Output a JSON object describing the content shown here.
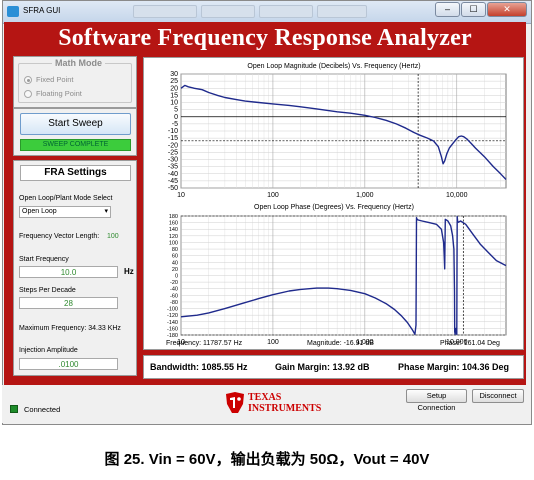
{
  "window": {
    "title": "SFRA GUI",
    "minimize": "–",
    "maximize": "☐",
    "close": "✕"
  },
  "banner": "Software Frequency Response Analyzer",
  "math_mode": {
    "title": "Math Mode",
    "options": [
      {
        "label": "Fixed Point",
        "selected": true
      },
      {
        "label": "Floating Point",
        "selected": false
      }
    ]
  },
  "start_sweep": "Start Sweep",
  "sweep_status": "SWEEP COMPLETE",
  "fra_settings": {
    "title": "FRA Settings",
    "mode_label": "Open Loop/Plant Mode Select",
    "mode_value": "Open Loop",
    "freq_vector_label": "Frequency Vector Length:",
    "freq_vector_value": "100",
    "start_freq_label": "Start Frequency",
    "start_freq_value": "10.0",
    "start_freq_unit": "Hz",
    "steps_label": "Steps Per Decade",
    "steps_value": "28",
    "max_freq_label": "Maximum Frequency: 34.33 KHz",
    "injection_label": "Injection Amplitude",
    "injection_value": ".0100"
  },
  "chart_data": [
    {
      "type": "line",
      "title": "Open Loop Magnitude (Decibels) Vs. Frequency (Hertz)",
      "xscale": "log",
      "xlim": [
        10,
        34330
      ],
      "ylim": [
        -50,
        30
      ],
      "x_ticks": [
        "10",
        "100",
        "1,000",
        "10,000"
      ],
      "y_ticks": [
        "30",
        "25",
        "20",
        "15",
        "10",
        "5",
        "0",
        "-5",
        "-10",
        "-15",
        "-20",
        "-25",
        "-30",
        "-35",
        "-40",
        "-45",
        "-50"
      ],
      "grid": true,
      "series": [
        {
          "color": "#1f2a8c",
          "x": [
            10,
            11,
            12,
            14,
            17,
            20,
            25,
            30,
            40,
            50,
            70,
            100,
            150,
            200,
            300,
            500,
            700,
            1000,
            1300,
            1700,
            2200,
            2800,
            3400,
            4000,
            4800,
            5600,
            6300,
            6800,
            7100,
            7400,
            7800,
            8300,
            9000,
            9800,
            10500,
            11200,
            11900,
            12800,
            14000,
            16000,
            20000,
            25000,
            30000,
            34330
          ],
          "y": [
            20,
            22,
            21,
            20,
            19,
            17,
            15,
            13.5,
            12,
            11,
            10,
            9,
            8,
            7,
            5.5,
            3.5,
            2.5,
            1,
            -0.5,
            -2.5,
            -5,
            -8,
            -11,
            -13,
            -15,
            -17,
            -21,
            -28,
            -33,
            -31,
            -26,
            -22,
            -19,
            -16,
            -14,
            -13.5,
            -14,
            -15.5,
            -18,
            -22,
            -28,
            -35,
            -40,
            -44
          ]
        }
      ],
      "markers": [
        {
          "x": 3800,
          "label": "dashed cursor"
        }
      ],
      "reference_y": -16.91
    },
    {
      "type": "line",
      "title": "Open Loop Phase (Degrees) Vs. Frequency (Hertz)",
      "xscale": "log",
      "xlim": [
        10,
        34330
      ],
      "ylim": [
        -180,
        180
      ],
      "x_ticks": [
        "10",
        "100",
        "1,000",
        "10,000"
      ],
      "y_ticks": [
        "180",
        "160",
        "140",
        "120",
        "100",
        "80",
        "60",
        "40",
        "20",
        "0",
        "-20",
        "-40",
        "-60",
        "-80",
        "-100",
        "-120",
        "-140",
        "-160",
        "-180"
      ],
      "grid": true,
      "series": [
        {
          "color": "#1f2a8c",
          "x": [
            10,
            15,
            20,
            30,
            50,
            70,
            100,
            150,
            200,
            300,
            400,
            500,
            700,
            1000,
            1300,
            1700,
            2100,
            2500,
            2900,
            3300,
            3500,
            3600,
            3650,
            3700,
            3800,
            4200,
            5000,
            6000,
            6800,
            7200,
            7300,
            7400,
            7500,
            8000,
            8600,
            9000,
            9300,
            9450,
            9500,
            9600,
            9700,
            9800,
            9900,
            10000,
            10050,
            10100,
            10200,
            10400,
            11000,
            12500,
            15000,
            18000,
            22000,
            27000,
            34330
          ],
          "y": [
            -125,
            -120,
            -113,
            -100,
            -82,
            -70,
            -58,
            -47,
            -42,
            -38,
            -38,
            -40,
            -45,
            -55,
            -68,
            -85,
            -103,
            -122,
            -142,
            -165,
            -178,
            -150,
            175,
            170,
            168,
            165,
            160,
            155,
            140,
            100,
            60,
            20,
            170,
            165,
            150,
            120,
            80,
            -50,
            -170,
            -178,
            -170,
            -160,
            -170,
            -178,
            30,
            178,
            165,
            161,
            165,
            155,
            125,
            95,
            70,
            45,
            30
          ]
        }
      ],
      "markers": [
        {
          "x": 11787.57,
          "label": "cursor"
        }
      ]
    }
  ],
  "cursor_readout": {
    "frequency": "Frequency: 11787.57 Hz",
    "magnitude": "Magnitude: -16.91 dB",
    "phase": "Phase: 161.04 Deg"
  },
  "stats": {
    "bandwidth": "Bandwidth: 1085.55 Hz",
    "gain_margin": "Gain Margin: 13.92 dB",
    "phase_margin": "Phase Margin: 104.36 Deg"
  },
  "footer": {
    "status": "Connected",
    "status_color": "#1e8c2a",
    "setup_button": "Setup Connection",
    "disconnect_button": "Disconnect",
    "logo_line1": "TEXAS",
    "logo_line2": "INSTRUMENTS",
    "logo_color": "#cc0000"
  },
  "caption": "图 25. Vin = 60V，输出负载为 50Ω，Vout = 40V"
}
